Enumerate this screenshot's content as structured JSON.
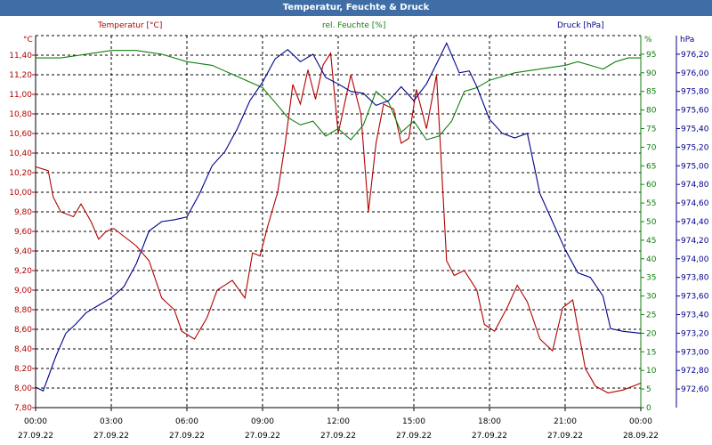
{
  "chart_data": {
    "type": "line",
    "title": "Temperatur, Feuchte & Druck",
    "grid": true,
    "x": {
      "ticks": [
        {
          "time": "00:00",
          "date": "27.09.22"
        },
        {
          "time": "03:00",
          "date": "27.09.22"
        },
        {
          "time": "06:00",
          "date": "27.09.22"
        },
        {
          "time": "09:00",
          "date": "27.09.22"
        },
        {
          "time": "12:00",
          "date": "27.09.22"
        },
        {
          "time": "15:00",
          "date": "27.09.22"
        },
        {
          "time": "18:00",
          "date": "27.09.22"
        },
        {
          "time": "21:00",
          "date": "27.09.22"
        },
        {
          "time": "00:00",
          "date": "28.09.22"
        }
      ]
    },
    "axes": {
      "temperature": {
        "unit": "°C",
        "range": [
          7.8,
          11.6
        ],
        "ticks": [
          "7,80",
          "8,00",
          "8,20",
          "8,40",
          "8,60",
          "8,80",
          "9,00",
          "9,20",
          "9,40",
          "9,60",
          "9,80",
          "10,00",
          "10,20",
          "10,40",
          "10,60",
          "10,80",
          "11,00",
          "11,20",
          "11,40"
        ]
      },
      "humidity": {
        "unit": "%",
        "range": [
          0,
          100
        ],
        "ticks": [
          "0",
          "5",
          "10",
          "15",
          "20",
          "25",
          "30",
          "35",
          "40",
          "45",
          "50",
          "55",
          "60",
          "65",
          "70",
          "75",
          "80",
          "85",
          "90",
          "95"
        ]
      },
      "pressure": {
        "unit": "hPa",
        "range": [
          972.4,
          976.4
        ],
        "ticks": [
          "972,60",
          "972,80",
          "973,00",
          "973,20",
          "973,40",
          "973,60",
          "973,80",
          "974,00",
          "974,20",
          "974,40",
          "974,60",
          "974,80",
          "975,00",
          "975,20",
          "975,40",
          "975,60",
          "975,80",
          "976,00",
          "976,20"
        ]
      }
    },
    "series": [
      {
        "name": "Temperatur [°C]",
        "axis": "temperature",
        "color": "#b00000",
        "values": [
          [
            0,
            10.26
          ],
          [
            0.5,
            10.22
          ],
          [
            0.7,
            9.95
          ],
          [
            1,
            9.8
          ],
          [
            1.5,
            9.75
          ],
          [
            1.8,
            9.88
          ],
          [
            2.2,
            9.7
          ],
          [
            2.5,
            9.52
          ],
          [
            2.8,
            9.6
          ],
          [
            3.1,
            9.63
          ],
          [
            3.5,
            9.55
          ],
          [
            4,
            9.45
          ],
          [
            4.5,
            9.3
          ],
          [
            5,
            8.92
          ],
          [
            5.5,
            8.8
          ],
          [
            5.8,
            8.58
          ],
          [
            6.3,
            8.5
          ],
          [
            6.8,
            8.72
          ],
          [
            7.2,
            9.0
          ],
          [
            7.8,
            9.1
          ],
          [
            8.3,
            8.92
          ],
          [
            8.6,
            9.38
          ],
          [
            8.9,
            9.35
          ],
          [
            9.2,
            9.65
          ],
          [
            9.6,
            10.0
          ],
          [
            9.9,
            10.5
          ],
          [
            10.2,
            11.1
          ],
          [
            10.5,
            10.9
          ],
          [
            10.8,
            11.25
          ],
          [
            11.1,
            10.95
          ],
          [
            11.4,
            11.3
          ],
          [
            11.7,
            11.42
          ],
          [
            12.0,
            10.6
          ],
          [
            12.5,
            11.2
          ],
          [
            12.9,
            10.8
          ],
          [
            13.2,
            9.8
          ],
          [
            13.5,
            10.5
          ],
          [
            13.8,
            10.9
          ],
          [
            14.2,
            10.85
          ],
          [
            14.5,
            10.5
          ],
          [
            14.8,
            10.55
          ],
          [
            15.1,
            11.05
          ],
          [
            15.5,
            10.65
          ],
          [
            15.9,
            11.2
          ],
          [
            16.3,
            9.3
          ],
          [
            16.6,
            9.15
          ],
          [
            17.0,
            9.2
          ],
          [
            17.5,
            9.0
          ],
          [
            17.8,
            8.65
          ],
          [
            18.2,
            8.58
          ],
          [
            18.7,
            8.82
          ],
          [
            19.1,
            9.05
          ],
          [
            19.5,
            8.88
          ],
          [
            20,
            8.5
          ],
          [
            20.5,
            8.38
          ],
          [
            20.9,
            8.82
          ],
          [
            21.3,
            8.9
          ],
          [
            21.8,
            8.2
          ],
          [
            22.2,
            8.02
          ],
          [
            22.7,
            7.95
          ],
          [
            23.3,
            7.98
          ],
          [
            24,
            8.05
          ]
        ]
      },
      {
        "name": "rel. Feuchte [%]",
        "axis": "humidity",
        "color": "#108010",
        "values": [
          [
            0,
            94
          ],
          [
            1,
            94
          ],
          [
            2,
            95
          ],
          [
            3,
            96
          ],
          [
            4,
            96
          ],
          [
            5,
            95
          ],
          [
            6,
            93
          ],
          [
            7,
            92
          ],
          [
            8,
            89
          ],
          [
            9,
            86
          ],
          [
            9.5,
            82
          ],
          [
            10,
            78
          ],
          [
            10.5,
            76
          ],
          [
            11,
            77
          ],
          [
            11.5,
            73
          ],
          [
            12,
            75
          ],
          [
            12.5,
            72
          ],
          [
            13,
            76
          ],
          [
            13.5,
            85
          ],
          [
            14,
            82
          ],
          [
            14.5,
            74
          ],
          [
            15,
            77
          ],
          [
            15.5,
            72
          ],
          [
            16,
            73
          ],
          [
            16.5,
            77
          ],
          [
            17,
            85
          ],
          [
            17.5,
            86
          ],
          [
            18,
            88
          ],
          [
            18.5,
            89
          ],
          [
            19,
            90
          ],
          [
            20,
            91
          ],
          [
            21,
            92
          ],
          [
            21.5,
            93
          ],
          [
            22,
            92
          ],
          [
            22.5,
            91
          ],
          [
            23,
            93
          ],
          [
            23.5,
            94
          ],
          [
            24,
            94
          ]
        ]
      },
      {
        "name": "Druck [hPa]",
        "axis": "pressure",
        "color": "#00008a",
        "values": [
          [
            0,
            972.62
          ],
          [
            0.3,
            972.58
          ],
          [
            0.8,
            972.95
          ],
          [
            1.2,
            973.2
          ],
          [
            1.6,
            973.3
          ],
          [
            2,
            973.42
          ],
          [
            2.5,
            973.5
          ],
          [
            3,
            973.58
          ],
          [
            3.5,
            973.7
          ],
          [
            4,
            973.95
          ],
          [
            4.5,
            974.3
          ],
          [
            5,
            974.4
          ],
          [
            5.5,
            974.42
          ],
          [
            6,
            974.45
          ],
          [
            6.5,
            974.7
          ],
          [
            7,
            975.0
          ],
          [
            7.5,
            975.15
          ],
          [
            8,
            975.4
          ],
          [
            8.5,
            975.7
          ],
          [
            9,
            975.9
          ],
          [
            9.5,
            976.15
          ],
          [
            10,
            976.25
          ],
          [
            10.5,
            976.12
          ],
          [
            11,
            976.2
          ],
          [
            11.5,
            975.95
          ],
          [
            12,
            975.88
          ],
          [
            12.5,
            975.8
          ],
          [
            13,
            975.78
          ],
          [
            13.5,
            975.65
          ],
          [
            14,
            975.7
          ],
          [
            14.5,
            975.85
          ],
          [
            15,
            975.7
          ],
          [
            15.5,
            975.88
          ],
          [
            16,
            976.15
          ],
          [
            16.3,
            976.32
          ],
          [
            16.8,
            976.0
          ],
          [
            17.2,
            976.02
          ],
          [
            17.5,
            975.85
          ],
          [
            18,
            975.5
          ],
          [
            18.5,
            975.35
          ],
          [
            19,
            975.3
          ],
          [
            19.5,
            975.35
          ],
          [
            20,
            974.7
          ],
          [
            20.5,
            974.4
          ],
          [
            21,
            974.1
          ],
          [
            21.5,
            973.85
          ],
          [
            22,
            973.8
          ],
          [
            22.5,
            973.6
          ],
          [
            22.8,
            973.25
          ],
          [
            23.3,
            973.22
          ],
          [
            24,
            973.2
          ]
        ]
      }
    ]
  }
}
